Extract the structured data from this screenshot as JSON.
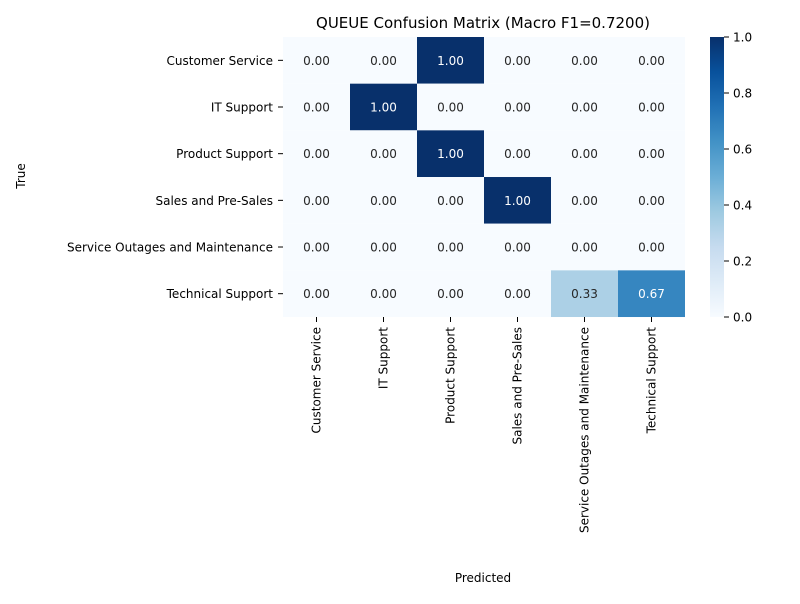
{
  "chart_data": {
    "type": "heatmap",
    "title": "QUEUE Confusion Matrix (Macro F1=0.7200)",
    "xlabel": "Predicted",
    "ylabel": "True",
    "rows": [
      "Customer Service",
      "IT Support",
      "Product Support",
      "Sales and Pre-Sales",
      "Service Outages and Maintenance",
      "Technical Support"
    ],
    "columns": [
      "Customer Service",
      "IT Support",
      "Product Support",
      "Sales and Pre-Sales",
      "Service Outages and Maintenance",
      "Technical Support"
    ],
    "values": [
      [
        0.0,
        0.0,
        1.0,
        0.0,
        0.0,
        0.0
      ],
      [
        0.0,
        1.0,
        0.0,
        0.0,
        0.0,
        0.0
      ],
      [
        0.0,
        0.0,
        1.0,
        0.0,
        0.0,
        0.0
      ],
      [
        0.0,
        0.0,
        0.0,
        1.0,
        0.0,
        0.0
      ],
      [
        0.0,
        0.0,
        0.0,
        0.0,
        0.0,
        0.0
      ],
      [
        0.0,
        0.0,
        0.0,
        0.0,
        0.33,
        0.67
      ]
    ],
    "value_format": "0.00",
    "colormap": "Blues",
    "vmin": 0.0,
    "vmax": 1.0,
    "colorbar_ticks": [
      "0.0",
      "0.2",
      "0.4",
      "0.6",
      "0.8",
      "1.0"
    ],
    "colors": {
      "low": "#f7fbff",
      "high": "#08306b",
      "text_dark": "#262626",
      "text_light": "#ffffff"
    }
  }
}
